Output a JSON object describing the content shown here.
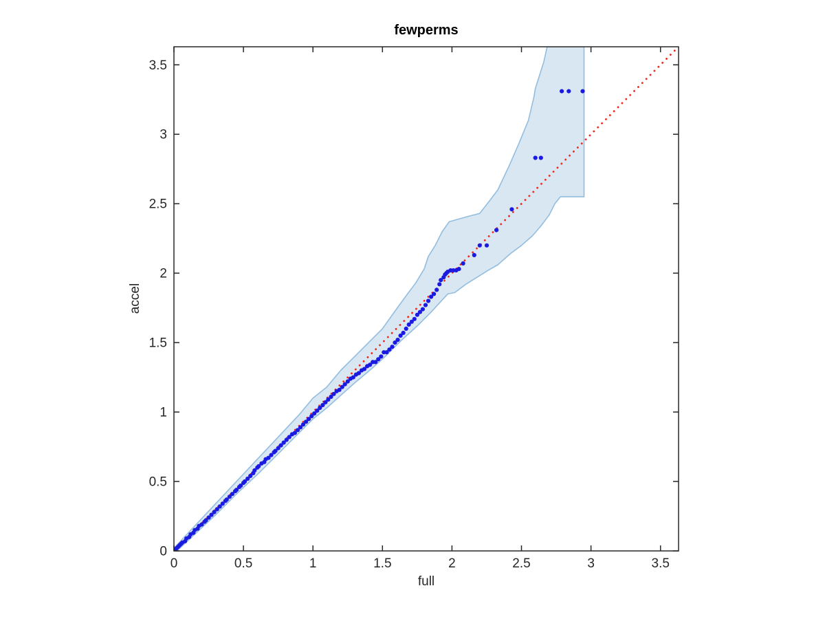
{
  "colors": {
    "background": "#FFFFFF",
    "axis": "#262626",
    "marker_blue": "#1A1AE0",
    "reference_red": "#EF2A1C",
    "band_fill": "#D9E7F3",
    "band_edge": "#92BDDF"
  },
  "chart_data": {
    "type": "scatter",
    "title": "fewperms",
    "xlabel": "full",
    "ylabel": "accel",
    "xlim": [
      0,
      3.63
    ],
    "ylim": [
      0,
      3.63
    ],
    "grid": false,
    "legend": "none",
    "axis_color": "#262626",
    "xticks": [
      0,
      0.5,
      1,
      1.5,
      2,
      2.5,
      3,
      3.5
    ],
    "yticks": [
      0,
      0.5,
      1,
      1.5,
      2,
      2.5,
      3,
      3.5
    ],
    "xtick_labels": [
      "0",
      "0.5",
      "1",
      "1.5",
      "2",
      "2.5",
      "3",
      "3.5"
    ],
    "ytick_labels": [
      "0",
      "0.5",
      "1",
      "1.5",
      "2",
      "2.5",
      "3",
      "3.5"
    ],
    "reference_line": {
      "style": "dotted",
      "color": "#EF2A1C",
      "points": [
        [
          0,
          0
        ],
        [
          3.7,
          3.7
        ]
      ]
    },
    "band": {
      "fill": "#D9E7F3",
      "edge": "#92BDDF",
      "right_top": [
        2.95,
        3.7
      ],
      "upper": [
        [
          0.0,
          0.02
        ],
        [
          0.15,
          0.18
        ],
        [
          0.3,
          0.34
        ],
        [
          0.45,
          0.5
        ],
        [
          0.6,
          0.66
        ],
        [
          0.75,
          0.82
        ],
        [
          0.9,
          0.98
        ],
        [
          1.0,
          1.1
        ],
        [
          1.1,
          1.18
        ],
        [
          1.2,
          1.3
        ],
        [
          1.3,
          1.4
        ],
        [
          1.4,
          1.5
        ],
        [
          1.5,
          1.6
        ],
        [
          1.6,
          1.74
        ],
        [
          1.68,
          1.85
        ],
        [
          1.74,
          1.93
        ],
        [
          1.8,
          2.03
        ],
        [
          1.83,
          2.12
        ],
        [
          1.88,
          2.2
        ],
        [
          1.93,
          2.3
        ],
        [
          1.98,
          2.37
        ],
        [
          2.05,
          2.39
        ],
        [
          2.12,
          2.41
        ],
        [
          2.2,
          2.43
        ],
        [
          2.27,
          2.52
        ],
        [
          2.33,
          2.6
        ],
        [
          2.41,
          2.77
        ],
        [
          2.48,
          2.93
        ],
        [
          2.55,
          3.1
        ],
        [
          2.59,
          3.27
        ],
        [
          2.6,
          3.33
        ],
        [
          2.66,
          3.52
        ],
        [
          2.7,
          3.7
        ]
      ],
      "lower": [
        [
          0.0,
          -0.02
        ],
        [
          0.15,
          0.12
        ],
        [
          0.3,
          0.26
        ],
        [
          0.45,
          0.41
        ],
        [
          0.6,
          0.55
        ],
        [
          0.75,
          0.7
        ],
        [
          0.88,
          0.83
        ],
        [
          1.0,
          0.95
        ],
        [
          1.1,
          1.03
        ],
        [
          1.2,
          1.12
        ],
        [
          1.3,
          1.21
        ],
        [
          1.42,
          1.31
        ],
        [
          1.52,
          1.4
        ],
        [
          1.64,
          1.52
        ],
        [
          1.75,
          1.62
        ],
        [
          1.85,
          1.72
        ],
        [
          1.97,
          1.85
        ],
        [
          2.02,
          1.86
        ],
        [
          2.1,
          1.92
        ],
        [
          2.18,
          1.97
        ],
        [
          2.26,
          2.02
        ],
        [
          2.33,
          2.06
        ],
        [
          2.42,
          2.14
        ],
        [
          2.5,
          2.2
        ],
        [
          2.58,
          2.27
        ],
        [
          2.64,
          2.34
        ],
        [
          2.7,
          2.42
        ],
        [
          2.74,
          2.5
        ],
        [
          2.78,
          2.55
        ],
        [
          2.95,
          2.55
        ]
      ]
    },
    "points": {
      "color": "#1A1AE0",
      "marker": "circle",
      "radius": 3.1,
      "xy": [
        [
          0.01,
          0.01
        ],
        [
          0.02,
          0.02
        ],
        [
          0.03,
          0.03
        ],
        [
          0.04,
          0.04
        ],
        [
          0.05,
          0.05
        ],
        [
          0.06,
          0.06
        ],
        [
          0.08,
          0.07
        ],
        [
          0.09,
          0.09
        ],
        [
          0.11,
          0.1
        ],
        [
          0.12,
          0.12
        ],
        [
          0.14,
          0.13
        ],
        [
          0.15,
          0.15
        ],
        [
          0.17,
          0.16
        ],
        [
          0.18,
          0.18
        ],
        [
          0.2,
          0.19
        ],
        [
          0.22,
          0.21
        ],
        [
          0.23,
          0.22
        ],
        [
          0.25,
          0.24
        ],
        [
          0.27,
          0.26
        ],
        [
          0.29,
          0.28
        ],
        [
          0.31,
          0.3
        ],
        [
          0.33,
          0.32
        ],
        [
          0.35,
          0.34
        ],
        [
          0.37,
          0.36
        ],
        [
          0.38,
          0.37
        ],
        [
          0.4,
          0.39
        ],
        [
          0.42,
          0.41
        ],
        [
          0.44,
          0.43
        ],
        [
          0.45,
          0.44
        ],
        [
          0.47,
          0.46
        ],
        [
          0.48,
          0.47
        ],
        [
          0.5,
          0.49
        ],
        [
          0.51,
          0.5
        ],
        [
          0.53,
          0.52
        ],
        [
          0.55,
          0.54
        ],
        [
          0.57,
          0.56
        ],
        [
          0.58,
          0.58
        ],
        [
          0.6,
          0.6
        ],
        [
          0.61,
          0.61
        ],
        [
          0.63,
          0.63
        ],
        [
          0.65,
          0.64
        ],
        [
          0.66,
          0.66
        ],
        [
          0.68,
          0.67
        ],
        [
          0.7,
          0.69
        ],
        [
          0.72,
          0.71
        ],
        [
          0.73,
          0.72
        ],
        [
          0.75,
          0.74
        ],
        [
          0.77,
          0.76
        ],
        [
          0.79,
          0.78
        ],
        [
          0.81,
          0.8
        ],
        [
          0.83,
          0.82
        ],
        [
          0.85,
          0.84
        ],
        [
          0.87,
          0.85
        ],
        [
          0.89,
          0.87
        ],
        [
          0.91,
          0.89
        ],
        [
          0.93,
          0.91
        ],
        [
          0.95,
          0.93
        ],
        [
          0.97,
          0.95
        ],
        [
          0.99,
          0.97
        ],
        [
          1.01,
          0.99
        ],
        [
          1.03,
          1.01
        ],
        [
          1.05,
          1.03
        ],
        [
          1.07,
          1.05
        ],
        [
          1.09,
          1.07
        ],
        [
          1.11,
          1.09
        ],
        [
          1.13,
          1.11
        ],
        [
          1.15,
          1.13
        ],
        [
          1.17,
          1.15
        ],
        [
          1.19,
          1.16
        ],
        [
          1.21,
          1.18
        ],
        [
          1.23,
          1.2
        ],
        [
          1.25,
          1.22
        ],
        [
          1.27,
          1.24
        ],
        [
          1.29,
          1.25
        ],
        [
          1.31,
          1.27
        ],
        [
          1.33,
          1.28
        ],
        [
          1.35,
          1.3
        ],
        [
          1.37,
          1.31
        ],
        [
          1.39,
          1.33
        ],
        [
          1.41,
          1.34
        ],
        [
          1.43,
          1.36
        ],
        [
          1.45,
          1.36
        ],
        [
          1.47,
          1.38
        ],
        [
          1.49,
          1.4
        ],
        [
          1.51,
          1.43
        ],
        [
          1.53,
          1.43
        ],
        [
          1.55,
          1.45
        ],
        [
          1.57,
          1.47
        ],
        [
          1.59,
          1.5
        ],
        [
          1.61,
          1.52
        ],
        [
          1.63,
          1.55
        ],
        [
          1.65,
          1.57
        ],
        [
          1.67,
          1.6
        ],
        [
          1.69,
          1.63
        ],
        [
          1.71,
          1.65
        ],
        [
          1.73,
          1.67
        ],
        [
          1.75,
          1.7
        ],
        [
          1.77,
          1.72
        ],
        [
          1.79,
          1.74
        ],
        [
          1.81,
          1.77
        ],
        [
          1.83,
          1.8
        ],
        [
          1.85,
          1.83
        ],
        [
          1.87,
          1.85
        ],
        [
          1.89,
          1.88
        ],
        [
          1.91,
          1.92
        ],
        [
          1.92,
          1.95
        ],
        [
          1.94,
          1.97
        ],
        [
          1.95,
          1.99
        ],
        [
          1.96,
          2.0
        ],
        [
          1.97,
          2.01
        ],
        [
          1.99,
          2.02
        ],
        [
          2.01,
          2.02
        ],
        [
          2.03,
          2.02
        ],
        [
          2.05,
          2.03
        ],
        [
          2.08,
          2.07
        ],
        [
          2.16,
          2.13
        ],
        [
          2.2,
          2.2
        ],
        [
          2.25,
          2.2
        ],
        [
          2.32,
          2.31
        ],
        [
          2.43,
          2.46
        ],
        [
          2.6,
          2.83
        ],
        [
          2.64,
          2.83
        ],
        [
          2.79,
          3.31
        ],
        [
          2.84,
          3.31
        ],
        [
          2.94,
          3.31
        ]
      ]
    }
  }
}
